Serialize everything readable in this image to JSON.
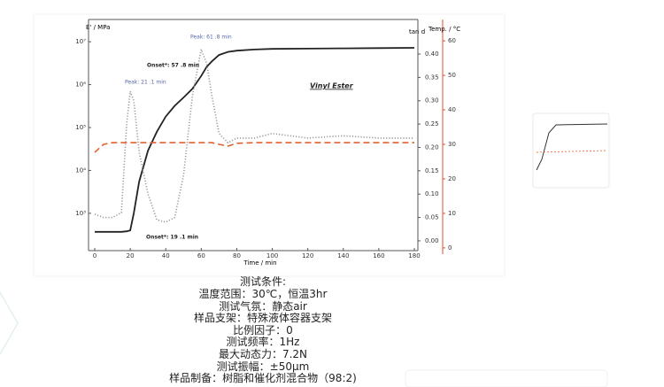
{
  "chart_data": {
    "type": "line",
    "x_label": "Time / min",
    "y_label": "E' / MPa",
    "y2_label": "tan d",
    "y3_label": "Temp. / °C",
    "x": [
      0,
      5,
      10,
      15,
      18,
      20,
      22,
      25,
      30,
      35,
      40,
      45,
      50,
      55,
      60,
      63,
      66,
      70,
      75,
      80,
      90,
      100,
      120,
      140,
      160,
      180
    ],
    "xlim": [
      -3.5,
      182
    ],
    "xticks": [
      0,
      20,
      40,
      60,
      80,
      100,
      120,
      140,
      160,
      180
    ],
    "ylog": true,
    "ylim": [
      135,
      33000000
    ],
    "yticks": [
      {
        "value": 1000,
        "label": "10³"
      },
      {
        "value": 10000,
        "label": "10⁴"
      },
      {
        "value": 100000,
        "label": "10⁵"
      },
      {
        "value": 1000000,
        "label": "10⁶"
      },
      {
        "value": 10000000,
        "label": "10⁷"
      }
    ],
    "y2lim": [
      -0.021,
      0.474
    ],
    "y2ticks": [
      {
        "value": 0,
        "label": "0.00"
      },
      {
        "value": 0.05,
        "label": "0.05"
      },
      {
        "value": 0.1,
        "label": "0.10"
      },
      {
        "value": 0.15,
        "label": "0.15"
      },
      {
        "value": 0.2,
        "label": "0.20"
      },
      {
        "value": 0.25,
        "label": "0.25"
      },
      {
        "value": 0.3,
        "label": "0.30"
      },
      {
        "value": 0.35,
        "label": "0.35"
      },
      {
        "value": 0.4,
        "label": "0.40"
      }
    ],
    "y3lim": [
      -0.8,
      66.2
    ],
    "y3ticks": [
      0,
      10,
      20,
      30,
      40,
      50,
      60
    ],
    "series": [
      {
        "name": "E'",
        "color": "#222222",
        "style": "solid",
        "axis": "y",
        "values": [
          370,
          370,
          370,
          370,
          380,
          400,
          1000,
          5500,
          29000,
          80000,
          180000,
          320000,
          500000,
          800000,
          1600000,
          2600000,
          3500000,
          4900000,
          5800000,
          6200000,
          6600000,
          6800000,
          6900000,
          7000000,
          7100000,
          7200000
        ]
      },
      {
        "name": "tan d",
        "color": "#999999",
        "style": "dotted",
        "axis": "y2",
        "values": [
          0.057,
          0.05,
          0.05,
          0.06,
          0.25,
          0.32,
          0.3,
          0.19,
          0.1,
          0.045,
          0.04,
          0.05,
          0.14,
          0.31,
          0.41,
          0.38,
          0.31,
          0.23,
          0.21,
          0.22,
          0.22,
          0.23,
          0.22,
          0.225,
          0.22,
          0.22
        ]
      },
      {
        "name": "Temp.",
        "color": "#e0622e",
        "style": "dashed",
        "axis": "y3",
        "values": [
          27.7,
          30,
          30.5,
          30.5,
          30.5,
          30.5,
          30.5,
          30.5,
          30.5,
          30.5,
          30.5,
          30.5,
          30.5,
          30.5,
          30.5,
          30.5,
          30.5,
          30,
          29.5,
          30.3,
          30.5,
          30.5,
          30.5,
          30.5,
          30.5,
          30.5
        ]
      }
    ],
    "annotations": [
      "Peak: 61 .8 min",
      "Peak: 21 .1 min",
      "Onset*: 57 .8 min",
      "Vinyl Ester",
      "Onset*: 19 .1 min"
    ]
  },
  "test_conditions": {
    "title": "测试条件:",
    "items": [
      "温度范围：30℃，恒温3hr",
      "测试气氛：静态air",
      "样品支架：特殊液体容器支架",
      "比例因子：0",
      "测试频率：1Hz",
      "最大动态力：7.2N",
      "测试振幅：±50μm",
      "样品制备：树脂和催化剂混合物（98:2)"
    ]
  }
}
